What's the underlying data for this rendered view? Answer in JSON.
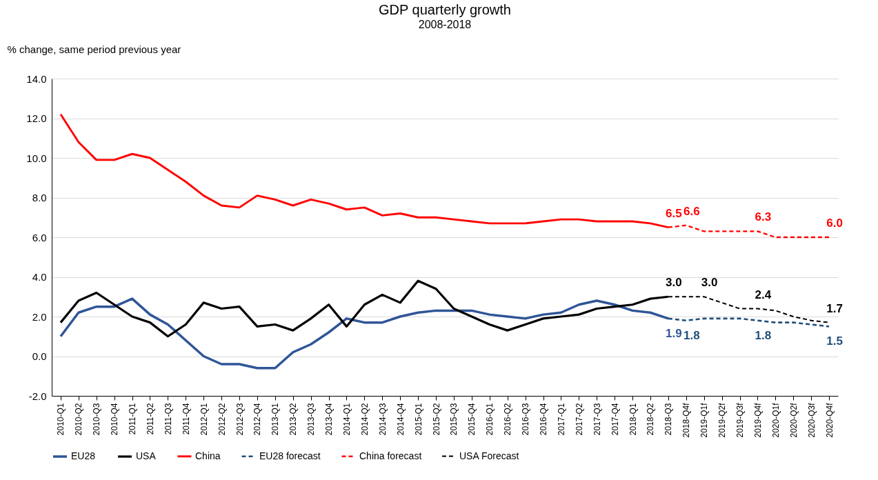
{
  "chart_data": {
    "type": "line",
    "title": "GDP quarterly growth",
    "subtitle": "2008-2018",
    "ylabel": "% change, same period previous year",
    "categories": [
      "2010-Q1",
      "2010-Q2",
      "2010-Q3",
      "2010-Q4",
      "2011-Q1",
      "2011-Q2",
      "2011-Q3",
      "2011-Q4",
      "2012-Q1",
      "2012-Q2",
      "2012-Q3",
      "2012-Q4",
      "2013-Q1",
      "2013-Q2",
      "2013-Q3",
      "2013-Q4",
      "2014-Q1",
      "2014-Q2",
      "2014-Q3",
      "2014-Q4",
      "2015-Q1",
      "2015-Q2",
      "2015-Q3",
      "2015-Q4",
      "2016-Q1",
      "2016-Q2",
      "2016-Q3",
      "2016-Q4",
      "2017-Q1",
      "2017-Q2",
      "2017-Q3",
      "2017-Q4",
      "2018-Q1",
      "2018-Q2",
      "2018-Q3",
      "2018-Q4f",
      "2019-Q1f",
      "2019-Q2f",
      "2019-Q3f",
      "2019-Q4f",
      "2020-Q1f",
      "2020-Q2f",
      "2020-Q3f",
      "2020-Q4f"
    ],
    "series": [
      {
        "name": "EU28",
        "color": "#2f5597",
        "line_style": "solid",
        "values": [
          1.0,
          2.2,
          2.5,
          2.5,
          2.9,
          2.1,
          1.6,
          0.8,
          0.0,
          -0.4,
          -0.4,
          -0.6,
          -0.6,
          0.2,
          0.6,
          1.2,
          1.9,
          1.7,
          1.7,
          2.0,
          2.2,
          2.3,
          2.3,
          2.3,
          2.1,
          2.0,
          1.9,
          2.1,
          2.2,
          2.6,
          2.8,
          2.6,
          2.3,
          2.2,
          1.9,
          null,
          null,
          null,
          null,
          null,
          null,
          null,
          null,
          null
        ],
        "value_labels": [
          null,
          null,
          null,
          null,
          null,
          null,
          null,
          null,
          null,
          null,
          null,
          null,
          null,
          null,
          null,
          null,
          null,
          null,
          null,
          null,
          null,
          null,
          null,
          null,
          null,
          null,
          null,
          null,
          null,
          null,
          null,
          null,
          null,
          null,
          "1.9",
          null,
          null,
          null,
          null,
          null,
          null,
          null,
          null,
          null
        ]
      },
      {
        "name": "USA",
        "color": "#000000",
        "line_style": "solid",
        "values": [
          1.7,
          2.8,
          3.2,
          2.6,
          2.0,
          1.7,
          1.0,
          1.6,
          2.7,
          2.4,
          2.5,
          1.5,
          1.6,
          1.3,
          1.9,
          2.6,
          1.5,
          2.6,
          3.1,
          2.7,
          3.8,
          3.4,
          2.4,
          2.0,
          1.6,
          1.3,
          1.6,
          1.9,
          2.0,
          2.1,
          2.4,
          2.5,
          2.6,
          2.9,
          3.0,
          null,
          null,
          null,
          null,
          null,
          null,
          null,
          null,
          null
        ],
        "value_labels": [
          null,
          null,
          null,
          null,
          null,
          null,
          null,
          null,
          null,
          null,
          null,
          null,
          null,
          null,
          null,
          null,
          null,
          null,
          null,
          null,
          null,
          null,
          null,
          null,
          null,
          null,
          null,
          null,
          null,
          null,
          null,
          null,
          null,
          null,
          "3.0",
          null,
          null,
          null,
          null,
          null,
          null,
          null,
          null,
          null
        ]
      },
      {
        "name": "China",
        "color": "#ff0000",
        "line_style": "solid",
        "values": [
          12.2,
          10.8,
          9.9,
          9.9,
          10.2,
          10.0,
          9.4,
          8.8,
          8.1,
          7.6,
          7.5,
          8.1,
          7.9,
          7.6,
          7.9,
          7.7,
          7.4,
          7.5,
          7.1,
          7.2,
          7.0,
          7.0,
          6.9,
          6.8,
          6.7,
          6.7,
          6.7,
          6.8,
          6.9,
          6.9,
          6.8,
          6.8,
          6.8,
          6.7,
          6.5,
          null,
          null,
          null,
          null,
          null,
          null,
          null,
          null,
          null
        ],
        "value_labels": [
          null,
          null,
          null,
          null,
          null,
          null,
          null,
          null,
          null,
          null,
          null,
          null,
          null,
          null,
          null,
          null,
          null,
          null,
          null,
          null,
          null,
          null,
          null,
          null,
          null,
          null,
          null,
          null,
          null,
          null,
          null,
          null,
          null,
          null,
          "6.5",
          null,
          null,
          null,
          null,
          null,
          null,
          null,
          null,
          null
        ]
      },
      {
        "name": "EU28 forecast",
        "color": "#1f4e79",
        "line_style": "dashed",
        "values": [
          null,
          null,
          null,
          null,
          null,
          null,
          null,
          null,
          null,
          null,
          null,
          null,
          null,
          null,
          null,
          null,
          null,
          null,
          null,
          null,
          null,
          null,
          null,
          null,
          null,
          null,
          null,
          null,
          null,
          null,
          null,
          null,
          null,
          null,
          1.9,
          1.8,
          1.9,
          1.9,
          1.9,
          1.8,
          1.7,
          1.7,
          1.6,
          1.5
        ],
        "value_labels": [
          null,
          null,
          null,
          null,
          null,
          null,
          null,
          null,
          null,
          null,
          null,
          null,
          null,
          null,
          null,
          null,
          null,
          null,
          null,
          null,
          null,
          null,
          null,
          null,
          null,
          null,
          null,
          null,
          null,
          null,
          null,
          null,
          null,
          null,
          null,
          "1.8",
          null,
          null,
          null,
          "1.8",
          null,
          null,
          null,
          "1.5"
        ]
      },
      {
        "name": "China forecast",
        "color": "#ff0000",
        "line_style": "dashed",
        "values": [
          null,
          null,
          null,
          null,
          null,
          null,
          null,
          null,
          null,
          null,
          null,
          null,
          null,
          null,
          null,
          null,
          null,
          null,
          null,
          null,
          null,
          null,
          null,
          null,
          null,
          null,
          null,
          null,
          null,
          null,
          null,
          null,
          null,
          null,
          6.5,
          6.6,
          6.3,
          6.3,
          6.3,
          6.3,
          6.0,
          6.0,
          6.0,
          6.0
        ],
        "value_labels": [
          null,
          null,
          null,
          null,
          null,
          null,
          null,
          null,
          null,
          null,
          null,
          null,
          null,
          null,
          null,
          null,
          null,
          null,
          null,
          null,
          null,
          null,
          null,
          null,
          null,
          null,
          null,
          null,
          null,
          null,
          null,
          null,
          null,
          null,
          null,
          "6.6",
          null,
          null,
          null,
          "6.3",
          null,
          null,
          null,
          "6.0"
        ]
      },
      {
        "name": "USA Forecast",
        "color": "#000000",
        "line_style": "dashed",
        "values": [
          null,
          null,
          null,
          null,
          null,
          null,
          null,
          null,
          null,
          null,
          null,
          null,
          null,
          null,
          null,
          null,
          null,
          null,
          null,
          null,
          null,
          null,
          null,
          null,
          null,
          null,
          null,
          null,
          null,
          null,
          null,
          null,
          null,
          null,
          3.0,
          3.0,
          3.0,
          2.7,
          2.4,
          2.4,
          2.3,
          2.0,
          1.8,
          1.7
        ],
        "value_labels": [
          null,
          null,
          null,
          null,
          null,
          null,
          null,
          null,
          null,
          null,
          null,
          null,
          null,
          null,
          null,
          null,
          null,
          null,
          null,
          null,
          null,
          null,
          null,
          null,
          null,
          null,
          null,
          null,
          null,
          null,
          null,
          null,
          null,
          null,
          null,
          null,
          "3.0",
          null,
          null,
          "2.4",
          null,
          null,
          null,
          "1.7"
        ]
      }
    ],
    "ylim": [
      -2,
      14
    ],
    "yticks": [
      {
        "value": -2,
        "label": "-2.0"
      },
      {
        "value": 0,
        "label": "0.0"
      },
      {
        "value": 2,
        "label": "2.0"
      },
      {
        "value": 4,
        "label": "4.0"
      },
      {
        "value": 6,
        "label": "6.0"
      },
      {
        "value": 8,
        "label": "8.0"
      },
      {
        "value": 10,
        "label": "10.0"
      },
      {
        "value": 12,
        "label": "12.0"
      },
      {
        "value": 14,
        "label": "14.0"
      }
    ],
    "grid": "y",
    "legend": "bottom",
    "marker": "none"
  }
}
